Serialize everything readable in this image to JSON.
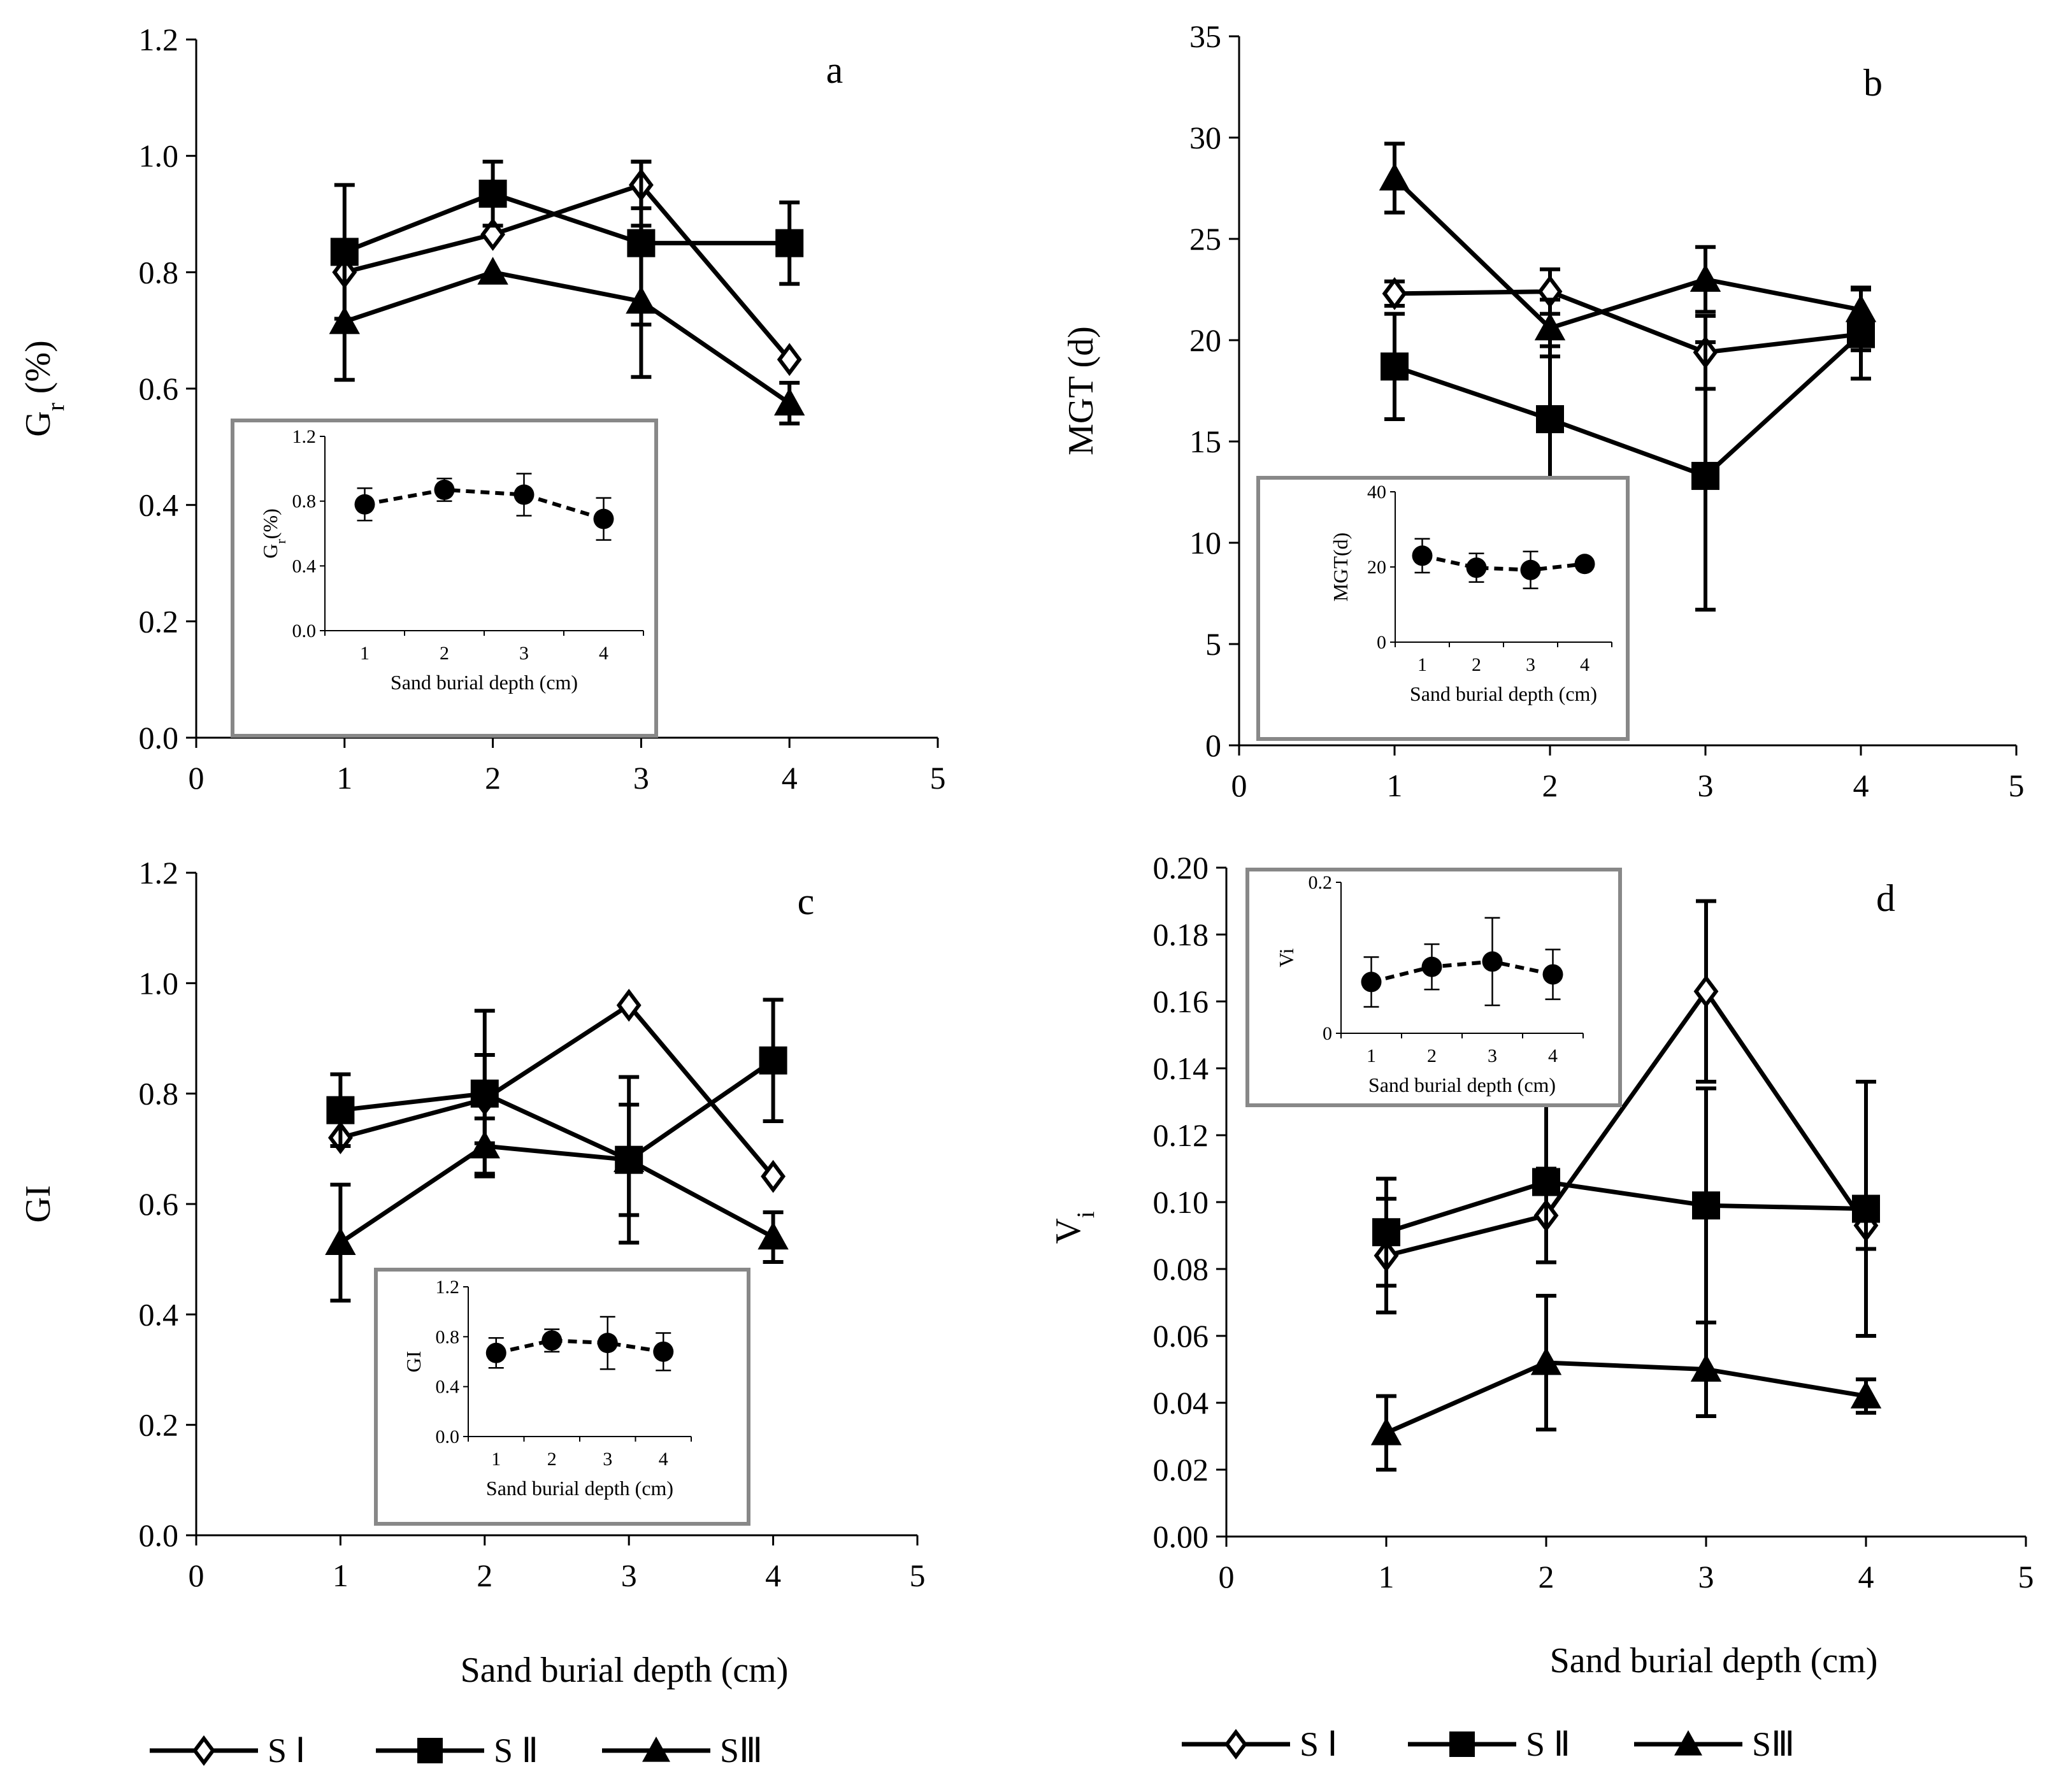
{
  "chart_data": [
    {
      "type": "line",
      "panel": "a",
      "ylabel": "Gr (%)",
      "ylabel_main": "G",
      "ylabel_sub": "r",
      "ylabel_rest": " (%)",
      "xlim": [
        0,
        5
      ],
      "ylim": [
        0,
        1.2
      ],
      "x_ticks": [
        "0",
        "1",
        "2",
        "3",
        "4",
        "5"
      ],
      "y_ticks": [
        "0.0",
        "0.2",
        "0.4",
        "0.6",
        "0.8",
        "1.0",
        "1.2"
      ],
      "x": [
        1,
        2,
        3,
        4
      ],
      "series": [
        {
          "name": "S Ⅰ",
          "marker": "diamond",
          "values": [
            0.8,
            0.865,
            0.95,
            0.65
          ],
          "errors": [
            0.0,
            0.0,
            0.04,
            0.0
          ]
        },
        {
          "name": "S Ⅱ",
          "marker": "square",
          "values": [
            0.835,
            0.935,
            0.85,
            0.85
          ],
          "errors": [
            0.115,
            0.055,
            0.14,
            0.07
          ]
        },
        {
          "name": "SⅢ",
          "marker": "triangle",
          "values": [
            0.715,
            0.8,
            0.75,
            0.575
          ],
          "errors": [
            0.1,
            0.0,
            0.13,
            0.035
          ]
        }
      ],
      "inset": {
        "ylabel": "Gr(%)",
        "ylabel_main": "G",
        "ylabel_sub": "r",
        "ylabel_rest": "(%)",
        "xlabel": "Sand burial depth (cm)",
        "xlim": [
          0.5,
          4.5
        ],
        "ylim": [
          0,
          1.2
        ],
        "x_ticks": [
          "1",
          "2",
          "3",
          "4"
        ],
        "y_ticks": [
          "0.0",
          "0.4",
          "0.8",
          "1.2"
        ],
        "x": [
          1,
          2,
          3,
          4
        ],
        "values": [
          0.78,
          0.87,
          0.84,
          0.69
        ],
        "errors": [
          0.1,
          0.07,
          0.13,
          0.13
        ]
      }
    },
    {
      "type": "line",
      "panel": "b",
      "ylabel": "MGT (d)",
      "xlim": [
        0,
        5
      ],
      "ylim": [
        0,
        35
      ],
      "x_ticks": [
        "0",
        "1",
        "2",
        "3",
        "4",
        "5"
      ],
      "y_ticks": [
        "0",
        "5",
        "10",
        "15",
        "20",
        "25",
        "30",
        "35"
      ],
      "x": [
        1,
        2,
        3,
        4
      ],
      "series": [
        {
          "name": "S Ⅰ",
          "marker": "diamond",
          "values": [
            22.3,
            22.4,
            19.4,
            20.3
          ],
          "errors": [
            0.6,
            1.1,
            1.8,
            0.8
          ]
        },
        {
          "name": "S Ⅱ",
          "marker": "square",
          "values": [
            18.7,
            16.1,
            13.3,
            20.3
          ],
          "errors": [
            2.6,
            3.6,
            6.6,
            2.2
          ]
        },
        {
          "name": "SⅢ",
          "marker": "triangle",
          "values": [
            28.0,
            20.6,
            23.0,
            21.5
          ],
          "errors": [
            1.7,
            1.4,
            1.6,
            1.1
          ]
        }
      ],
      "inset": {
        "ylabel": "MGT(d)",
        "xlabel": "Sand burial depth (cm)",
        "xlim": [
          0.5,
          4.5
        ],
        "ylim": [
          0,
          40
        ],
        "x_ticks": [
          "1",
          "2",
          "3",
          "4"
        ],
        "y_ticks": [
          "0",
          "20",
          "40"
        ],
        "x": [
          1,
          2,
          3,
          4
        ],
        "values": [
          23.0,
          19.8,
          19.2,
          20.8
        ],
        "errors": [
          4.5,
          3.8,
          4.9,
          1.5
        ]
      }
    },
    {
      "type": "line",
      "panel": "c",
      "ylabel": "GI",
      "xlim": [
        0,
        5
      ],
      "ylim": [
        0,
        1.2
      ],
      "x_ticks": [
        "0",
        "1",
        "2",
        "3",
        "4",
        "5"
      ],
      "y_ticks": [
        "0.0",
        "0.2",
        "0.4",
        "0.6",
        "0.8",
        "1.0",
        "1.2"
      ],
      "x": [
        1,
        2,
        3,
        4
      ],
      "series": [
        {
          "name": "S Ⅰ",
          "marker": "diamond",
          "values": [
            0.72,
            0.79,
            0.96,
            0.65
          ],
          "errors": [
            0.0,
            0.08,
            0.0,
            0.0
          ]
        },
        {
          "name": "S Ⅱ",
          "marker": "square",
          "values": [
            0.77,
            0.8,
            0.68,
            0.86
          ],
          "errors": [
            0.065,
            0.15,
            0.15,
            0.11
          ]
        },
        {
          "name": "SⅢ",
          "marker": "triangle",
          "values": [
            0.53,
            0.705,
            0.68,
            0.54
          ],
          "errors": [
            0.105,
            0.05,
            0.1,
            0.045
          ]
        }
      ],
      "inset": {
        "ylabel": "GI",
        "xlabel": "Sand burial depth (cm)",
        "xlim": [
          0.5,
          4.5
        ],
        "ylim": [
          0,
          1.2
        ],
        "x_ticks": [
          "1",
          "2",
          "3",
          "4"
        ],
        "y_ticks": [
          "0.0",
          "0.4",
          "0.8",
          "1.2"
        ],
        "x": [
          1,
          2,
          3,
          4
        ],
        "values": [
          0.67,
          0.77,
          0.75,
          0.68
        ],
        "errors": [
          0.12,
          0.09,
          0.21,
          0.15
        ]
      }
    },
    {
      "type": "line",
      "panel": "d",
      "ylabel": "Vi",
      "ylabel_main": "V",
      "ylabel_sub": "i",
      "ylabel_rest": "",
      "xlim": [
        0,
        5
      ],
      "ylim": [
        0,
        0.2
      ],
      "x_ticks": [
        "0",
        "1",
        "2",
        "3",
        "4",
        "5"
      ],
      "y_ticks": [
        "0.00",
        "0.02",
        "0.04",
        "0.06",
        "0.08",
        "0.10",
        "0.12",
        "0.14",
        "0.16",
        "0.18",
        "0.20"
      ],
      "x": [
        1,
        2,
        3,
        4
      ],
      "series": [
        {
          "name": "S Ⅰ",
          "marker": "diamond",
          "values": [
            0.084,
            0.096,
            0.163,
            0.093
          ],
          "errors": [
            0.017,
            0.014,
            0.027,
            0.007
          ]
        },
        {
          "name": "S Ⅱ",
          "marker": "square",
          "values": [
            0.091,
            0.106,
            0.099,
            0.098
          ],
          "errors": [
            0.016,
            0.024,
            0.035,
            0.038
          ]
        },
        {
          "name": "SⅢ",
          "marker": "triangle",
          "values": [
            0.031,
            0.052,
            0.05,
            0.042
          ],
          "errors": [
            0.011,
            0.02,
            0.014,
            0.005
          ]
        }
      ],
      "inset": {
        "ylabel": "Vi",
        "xlabel": "Sand burial depth (cm)",
        "xlim": [
          0.5,
          4.5
        ],
        "ylim": [
          0,
          0.2
        ],
        "x_ticks": [
          "1",
          "2",
          "3",
          "4"
        ],
        "y_ticks": [
          "0",
          "0.2"
        ],
        "x": [
          1,
          2,
          3,
          4
        ],
        "values": [
          0.068,
          0.088,
          0.095,
          0.078
        ],
        "errors": [
          0.033,
          0.03,
          0.058,
          0.033
        ]
      }
    }
  ],
  "shared": {
    "xlabel": "Sand burial depth (cm)",
    "legend": [
      "S Ⅰ",
      "S Ⅱ",
      "SⅢ"
    ]
  }
}
